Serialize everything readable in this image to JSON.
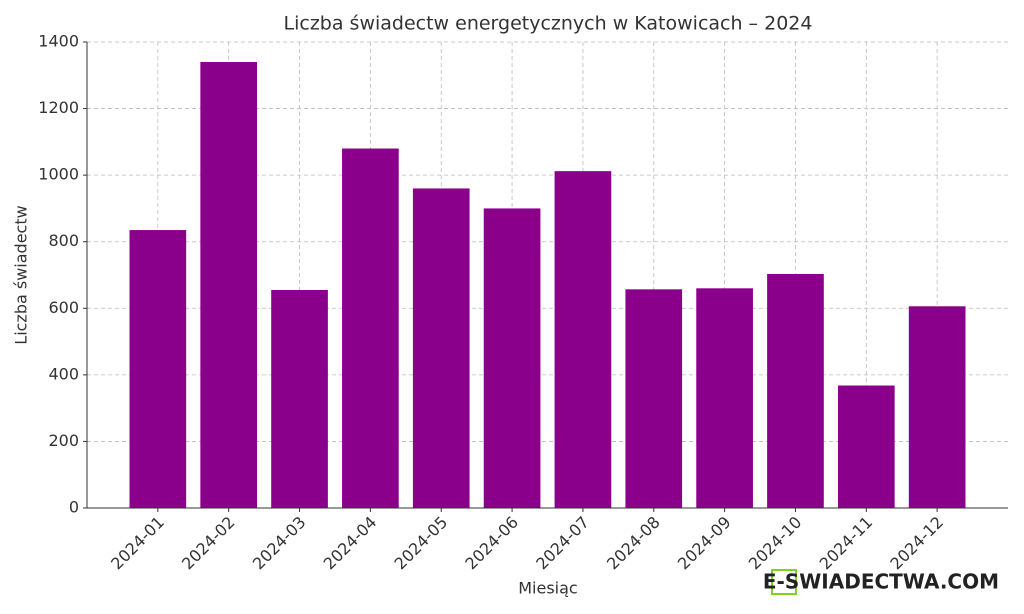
{
  "chart_data": {
    "type": "bar",
    "title": "Liczba świadectw energetycznych w Katowicach – 2024",
    "x_label": "Miesiąc",
    "y_label": "Liczba świadectw",
    "categories": [
      "2024-01",
      "2024-02",
      "2024-03",
      "2024-04",
      "2024-05",
      "2024-06",
      "2024-07",
      "2024-08",
      "2024-09",
      "2024-10",
      "2024-11",
      "2024-12"
    ],
    "values": [
      835,
      1340,
      655,
      1080,
      960,
      900,
      1012,
      657,
      660,
      703,
      368,
      606
    ],
    "color": "#8b008b",
    "ylim": [
      0,
      1400
    ],
    "yticks": [
      0,
      200,
      400,
      600,
      800,
      1000,
      1200,
      1400
    ],
    "grid": true,
    "watermark": "E-SWIADECTWA.COM"
  }
}
